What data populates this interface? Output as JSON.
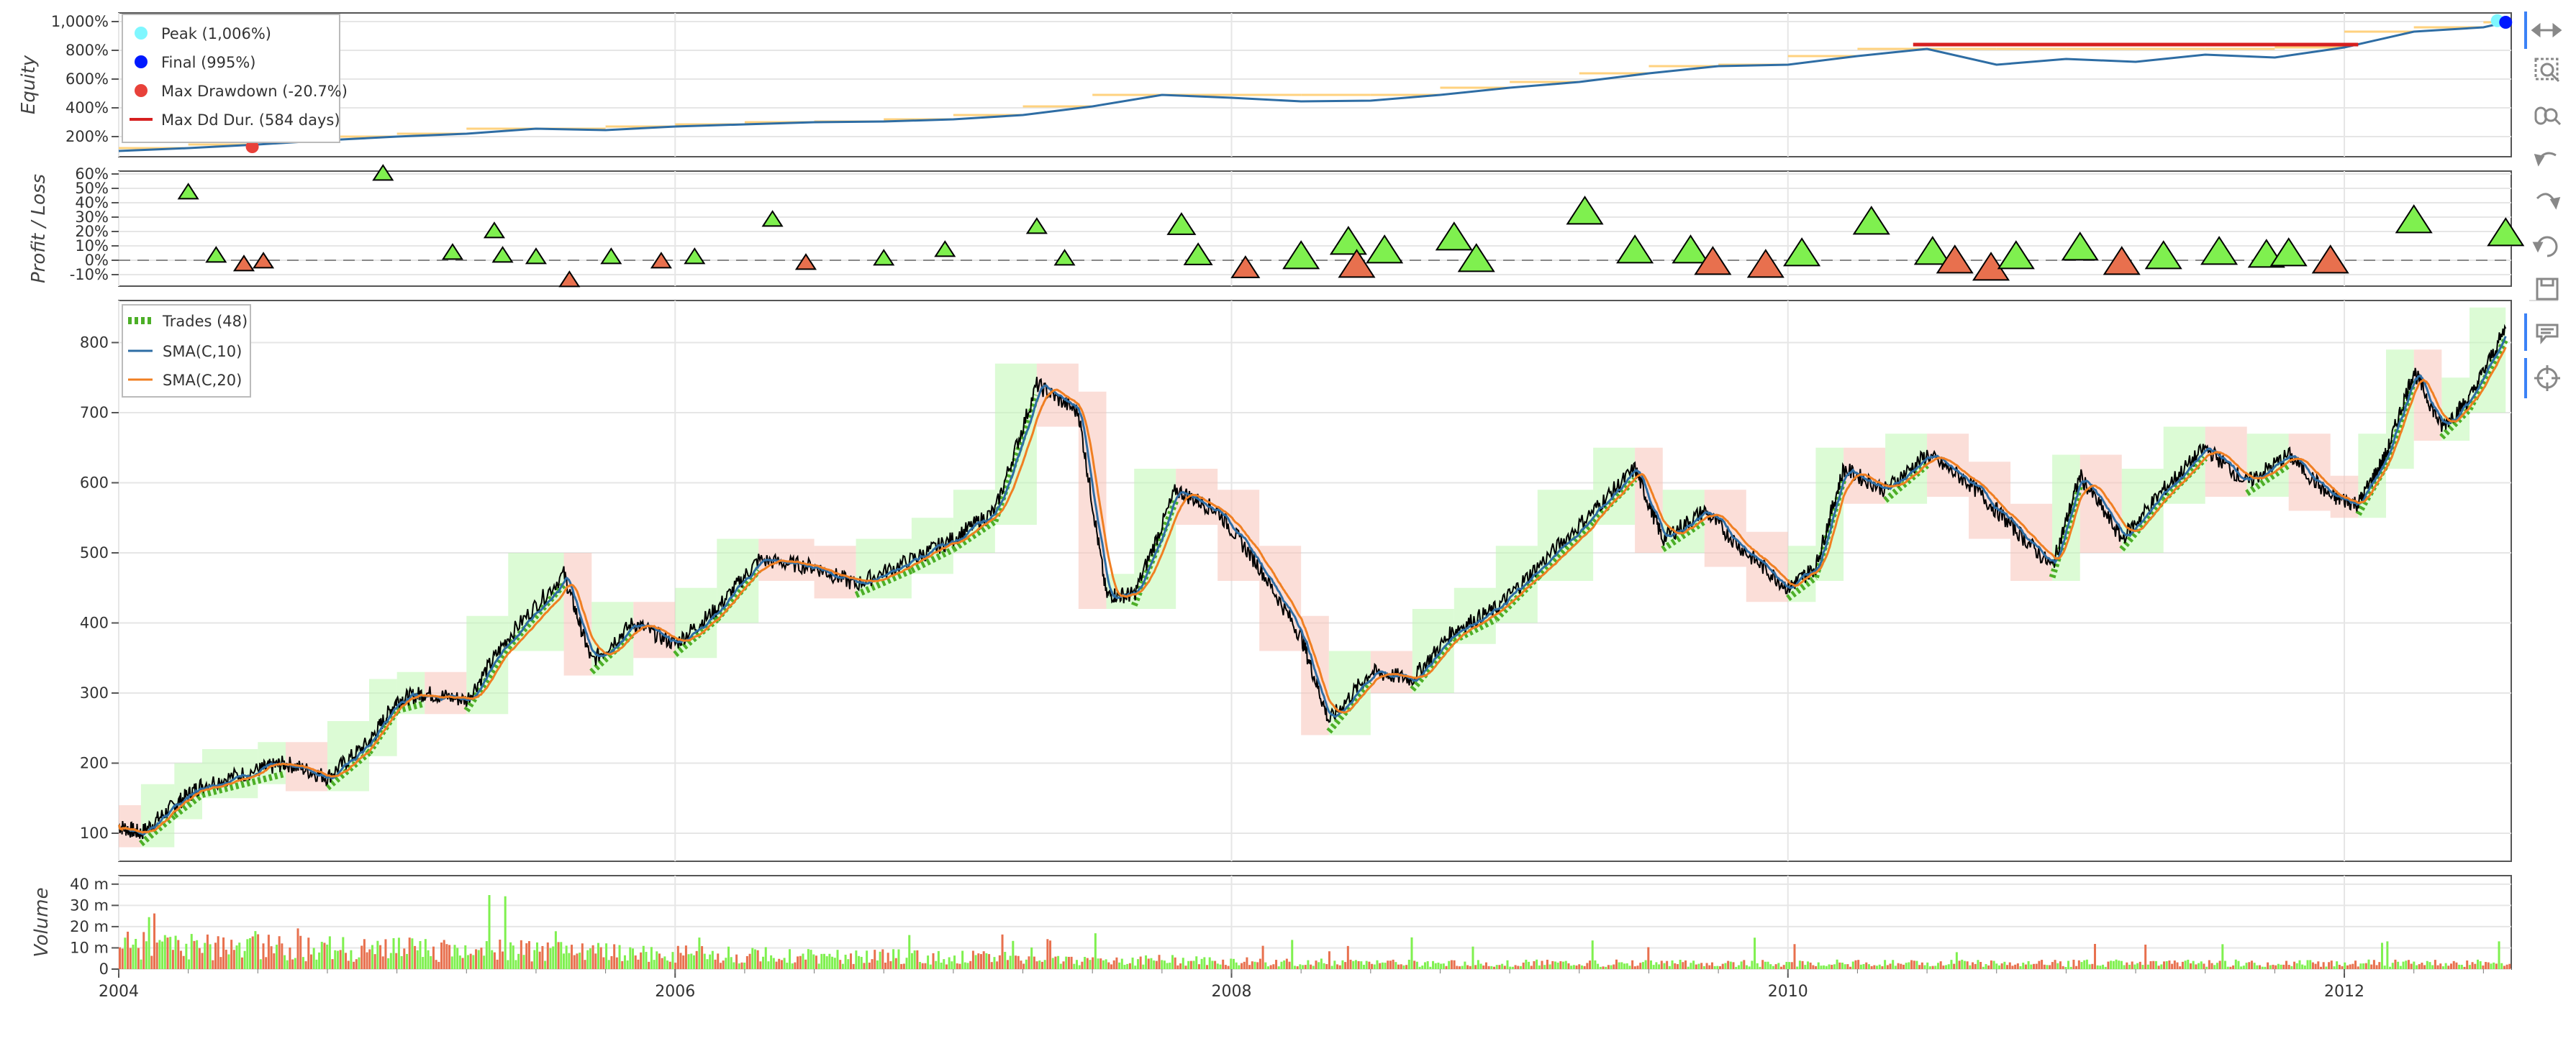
{
  "toolbar": {
    "tools": [
      {
        "name": "pan-tool",
        "icon": "pan-icon",
        "active": true
      },
      {
        "name": "box-zoom-tool",
        "icon": "box-zoom-icon",
        "active": false
      },
      {
        "name": "wheel-zoom-tool",
        "icon": "wheel-zoom-icon",
        "active": false
      },
      {
        "name": "undo-tool",
        "icon": "undo-icon",
        "active": false
      },
      {
        "name": "redo-tool",
        "icon": "redo-icon",
        "active": false
      },
      {
        "name": "reset-tool",
        "icon": "reset-icon",
        "active": false
      },
      {
        "name": "save-tool",
        "icon": "save-icon",
        "active": false
      },
      {
        "name": "hover-tool",
        "icon": "hover-icon",
        "active": true
      },
      {
        "name": "crosshair-tool",
        "icon": "crosshair-icon",
        "active": true
      }
    ],
    "active_color": "#3b82f6"
  },
  "chart_data": [
    {
      "panel": "equity",
      "type": "line",
      "ylabel": "Equity",
      "y_ticks": [
        "1,000%",
        "800%",
        "600%",
        "400%",
        "200%"
      ],
      "y_tick_values": [
        1000,
        800,
        600,
        400,
        200
      ],
      "ylim": [
        60,
        1060
      ],
      "legend": [
        {
          "label": "Peak (1,006%)",
          "color": "#7ff7ff",
          "marker": "circle"
        },
        {
          "label": "Final (995%)",
          "color": "#0019ff",
          "marker": "circle"
        },
        {
          "label": "Max Drawdown (-20.7%)",
          "color": "#e8413a",
          "marker": "circle"
        },
        {
          "label": "Max Dd Dur. (584 days)",
          "color": "#d62020",
          "marker": "line"
        }
      ],
      "legend_position": "top-left",
      "line_color": "#2e6da4",
      "peak_band_color": "#ffd27f",
      "series": [
        {
          "x": 2004.0,
          "y": 100
        },
        {
          "x": 2004.25,
          "y": 120
        },
        {
          "x": 2004.5,
          "y": 145
        },
        {
          "x": 2004.75,
          "y": 175
        },
        {
          "x": 2005.0,
          "y": 200
        },
        {
          "x": 2005.25,
          "y": 220
        },
        {
          "x": 2005.5,
          "y": 255
        },
        {
          "x": 2005.75,
          "y": 245
        },
        {
          "x": 2006.0,
          "y": 270
        },
        {
          "x": 2006.25,
          "y": 285
        },
        {
          "x": 2006.5,
          "y": 300
        },
        {
          "x": 2006.75,
          "y": 305
        },
        {
          "x": 2007.0,
          "y": 320
        },
        {
          "x": 2007.25,
          "y": 350
        },
        {
          "x": 2007.5,
          "y": 410
        },
        {
          "x": 2007.75,
          "y": 490
        },
        {
          "x": 2008.0,
          "y": 470
        },
        {
          "x": 2008.25,
          "y": 445
        },
        {
          "x": 2008.5,
          "y": 450
        },
        {
          "x": 2008.75,
          "y": 490
        },
        {
          "x": 2009.0,
          "y": 540
        },
        {
          "x": 2009.25,
          "y": 580
        },
        {
          "x": 2009.5,
          "y": 640
        },
        {
          "x": 2009.75,
          "y": 690
        },
        {
          "x": 2010.0,
          "y": 700
        },
        {
          "x": 2010.25,
          "y": 760
        },
        {
          "x": 2010.5,
          "y": 810
        },
        {
          "x": 2010.75,
          "y": 700
        },
        {
          "x": 2011.0,
          "y": 740
        },
        {
          "x": 2011.25,
          "y": 720
        },
        {
          "x": 2011.5,
          "y": 770
        },
        {
          "x": 2011.75,
          "y": 750
        },
        {
          "x": 2012.0,
          "y": 820
        },
        {
          "x": 2012.25,
          "y": 930
        },
        {
          "x": 2012.5,
          "y": 960
        },
        {
          "x": 2012.58,
          "y": 995
        }
      ],
      "peak": {
        "x": 2012.55,
        "y": 1006
      },
      "final": {
        "x": 2012.58,
        "y": 995
      },
      "max_drawdown": {
        "x": 2004.48,
        "y": 130
      },
      "max_dd_duration": {
        "x_start": 2010.45,
        "x_end": 2012.05,
        "y": 840
      }
    },
    {
      "panel": "profit_loss",
      "type": "scatter",
      "ylabel": "Profit / Loss",
      "y_ticks": [
        "60%",
        "50%",
        "40%",
        "30%",
        "20%",
        "10%",
        "0%",
        "-10%"
      ],
      "y_tick_values": [
        60,
        50,
        40,
        30,
        20,
        10,
        0,
        -10
      ],
      "ylim": [
        -18,
        62
      ],
      "win_color": "#7ff04f",
      "loss_color": "#e8704e",
      "trades": [
        {
          "x": 2004.25,
          "pnl": 47,
          "size": 1
        },
        {
          "x": 2004.35,
          "pnl": 3,
          "size": 1
        },
        {
          "x": 2004.45,
          "pnl": -3,
          "size": 1
        },
        {
          "x": 2004.52,
          "pnl": -1,
          "size": 1
        },
        {
          "x": 2004.95,
          "pnl": 60,
          "size": 1
        },
        {
          "x": 2005.2,
          "pnl": 5,
          "size": 1
        },
        {
          "x": 2005.35,
          "pnl": 20,
          "size": 1
        },
        {
          "x": 2005.38,
          "pnl": 3,
          "size": 1
        },
        {
          "x": 2005.5,
          "pnl": 2,
          "size": 1
        },
        {
          "x": 2005.62,
          "pnl": -14,
          "size": 1
        },
        {
          "x": 2005.77,
          "pnl": 2,
          "size": 1
        },
        {
          "x": 2005.95,
          "pnl": -1,
          "size": 1
        },
        {
          "x": 2006.07,
          "pnl": 2,
          "size": 1
        },
        {
          "x": 2006.35,
          "pnl": 28,
          "size": 1
        },
        {
          "x": 2006.47,
          "pnl": -2,
          "size": 1
        },
        {
          "x": 2006.75,
          "pnl": 1,
          "size": 1
        },
        {
          "x": 2006.97,
          "pnl": 7,
          "size": 1
        },
        {
          "x": 2007.3,
          "pnl": 23,
          "size": 1
        },
        {
          "x": 2007.4,
          "pnl": 1,
          "size": 1
        },
        {
          "x": 2007.82,
          "pnl": 24,
          "size": 2
        },
        {
          "x": 2007.88,
          "pnl": 3,
          "size": 2
        },
        {
          "x": 2008.05,
          "pnl": -6,
          "size": 2
        },
        {
          "x": 2008.25,
          "pnl": 2,
          "size": 3
        },
        {
          "x": 2008.42,
          "pnl": 12,
          "size": 3
        },
        {
          "x": 2008.45,
          "pnl": -4,
          "size": 3
        },
        {
          "x": 2008.55,
          "pnl": 6,
          "size": 3
        },
        {
          "x": 2008.8,
          "pnl": 15,
          "size": 3
        },
        {
          "x": 2008.88,
          "pnl": 0,
          "size": 3
        },
        {
          "x": 2009.27,
          "pnl": 33,
          "size": 3
        },
        {
          "x": 2009.45,
          "pnl": 6,
          "size": 3
        },
        {
          "x": 2009.65,
          "pnl": 6,
          "size": 3
        },
        {
          "x": 2009.73,
          "pnl": -2,
          "size": 3
        },
        {
          "x": 2009.92,
          "pnl": -4,
          "size": 3
        },
        {
          "x": 2010.05,
          "pnl": 4,
          "size": 3
        },
        {
          "x": 2010.3,
          "pnl": 26,
          "size": 3
        },
        {
          "x": 2010.52,
          "pnl": 5,
          "size": 3
        },
        {
          "x": 2010.6,
          "pnl": -1,
          "size": 3
        },
        {
          "x": 2010.73,
          "pnl": -6,
          "size": 3
        },
        {
          "x": 2010.82,
          "pnl": 2,
          "size": 3
        },
        {
          "x": 2011.05,
          "pnl": 8,
          "size": 3
        },
        {
          "x": 2011.2,
          "pnl": -2,
          "size": 3
        },
        {
          "x": 2011.35,
          "pnl": 2,
          "size": 3
        },
        {
          "x": 2011.55,
          "pnl": 5,
          "size": 3
        },
        {
          "x": 2011.72,
          "pnl": 3,
          "size": 3
        },
        {
          "x": 2011.8,
          "pnl": 4,
          "size": 3
        },
        {
          "x": 2011.95,
          "pnl": -1,
          "size": 3
        },
        {
          "x": 2012.25,
          "pnl": 27,
          "size": 3
        },
        {
          "x": 2012.58,
          "pnl": 18,
          "size": 3
        }
      ]
    },
    {
      "panel": "price",
      "type": "line",
      "y_ticks": [
        "800",
        "700",
        "600",
        "500",
        "400",
        "300",
        "200",
        "100"
      ],
      "y_tick_values": [
        800,
        700,
        600,
        500,
        400,
        300,
        200,
        100
      ],
      "ylim": [
        60,
        860
      ],
      "legend": [
        {
          "label": "Trades (48)",
          "color": "#4caf27",
          "marker": "dashed"
        },
        {
          "label": "SMA(C,10)",
          "color": "#2e6da4",
          "marker": "line"
        },
        {
          "label": "SMA(C,20)",
          "color": "#f07f22",
          "marker": "line"
        }
      ],
      "legend_position": "top-left",
      "price_color": "#000000",
      "sma10_color": "#2e6da4",
      "sma20_color": "#f07f22",
      "trade_color": "#4caf27",
      "win_band_color": "#bff7b3",
      "loss_band_color": "#f7c3b8",
      "series": [
        {
          "x": 2004.0,
          "y": 110
        },
        {
          "x": 2004.08,
          "y": 100
        },
        {
          "x": 2004.2,
          "y": 140
        },
        {
          "x": 2004.3,
          "y": 170
        },
        {
          "x": 2004.5,
          "y": 190
        },
        {
          "x": 2004.6,
          "y": 200
        },
        {
          "x": 2004.75,
          "y": 180
        },
        {
          "x": 2004.9,
          "y": 230
        },
        {
          "x": 2005.0,
          "y": 290
        },
        {
          "x": 2005.1,
          "y": 300
        },
        {
          "x": 2005.25,
          "y": 290
        },
        {
          "x": 2005.4,
          "y": 380
        },
        {
          "x": 2005.6,
          "y": 470
        },
        {
          "x": 2005.7,
          "y": 345
        },
        {
          "x": 2005.85,
          "y": 400
        },
        {
          "x": 2006.0,
          "y": 370
        },
        {
          "x": 2006.15,
          "y": 420
        },
        {
          "x": 2006.3,
          "y": 490
        },
        {
          "x": 2006.5,
          "y": 480
        },
        {
          "x": 2006.65,
          "y": 455
        },
        {
          "x": 2006.85,
          "y": 490
        },
        {
          "x": 2007.0,
          "y": 520
        },
        {
          "x": 2007.15,
          "y": 560
        },
        {
          "x": 2007.3,
          "y": 740
        },
        {
          "x": 2007.45,
          "y": 700
        },
        {
          "x": 2007.55,
          "y": 440
        },
        {
          "x": 2007.65,
          "y": 440
        },
        {
          "x": 2007.8,
          "y": 590
        },
        {
          "x": 2007.95,
          "y": 560
        },
        {
          "x": 2008.1,
          "y": 480
        },
        {
          "x": 2008.25,
          "y": 380
        },
        {
          "x": 2008.35,
          "y": 260
        },
        {
          "x": 2008.5,
          "y": 330
        },
        {
          "x": 2008.65,
          "y": 320
        },
        {
          "x": 2008.8,
          "y": 390
        },
        {
          "x": 2008.95,
          "y": 420
        },
        {
          "x": 2009.1,
          "y": 480
        },
        {
          "x": 2009.3,
          "y": 560
        },
        {
          "x": 2009.45,
          "y": 620
        },
        {
          "x": 2009.55,
          "y": 520
        },
        {
          "x": 2009.7,
          "y": 560
        },
        {
          "x": 2009.85,
          "y": 500
        },
        {
          "x": 2010.0,
          "y": 450
        },
        {
          "x": 2010.1,
          "y": 480
        },
        {
          "x": 2010.2,
          "y": 620
        },
        {
          "x": 2010.35,
          "y": 590
        },
        {
          "x": 2010.5,
          "y": 640
        },
        {
          "x": 2010.65,
          "y": 600
        },
        {
          "x": 2010.8,
          "y": 540
        },
        {
          "x": 2010.95,
          "y": 480
        },
        {
          "x": 2011.05,
          "y": 610
        },
        {
          "x": 2011.2,
          "y": 520
        },
        {
          "x": 2011.35,
          "y": 590
        },
        {
          "x": 2011.5,
          "y": 650
        },
        {
          "x": 2011.65,
          "y": 600
        },
        {
          "x": 2011.8,
          "y": 640
        },
        {
          "x": 2011.95,
          "y": 580
        },
        {
          "x": 2012.05,
          "y": 570
        },
        {
          "x": 2012.15,
          "y": 640
        },
        {
          "x": 2012.25,
          "y": 760
        },
        {
          "x": 2012.35,
          "y": 680
        },
        {
          "x": 2012.45,
          "y": 720
        },
        {
          "x": 2012.58,
          "y": 820
        }
      ]
    },
    {
      "panel": "volume",
      "type": "bar",
      "ylabel": "Volume",
      "y_ticks": [
        "40 m",
        "30 m",
        "20 m",
        "10 m",
        "0"
      ],
      "y_tick_values": [
        40,
        30,
        20,
        10,
        0
      ],
      "ylim": [
        0,
        44
      ],
      "up_color": "#7ff04f",
      "down_color": "#e8704e"
    }
  ],
  "x_axis": {
    "ticks": [
      "2004",
      "2006",
      "2008",
      "2010",
      "2012"
    ],
    "tick_values": [
      2004,
      2006,
      2008,
      2010,
      2012
    ],
    "xlim": [
      2004.0,
      2012.6
    ]
  }
}
